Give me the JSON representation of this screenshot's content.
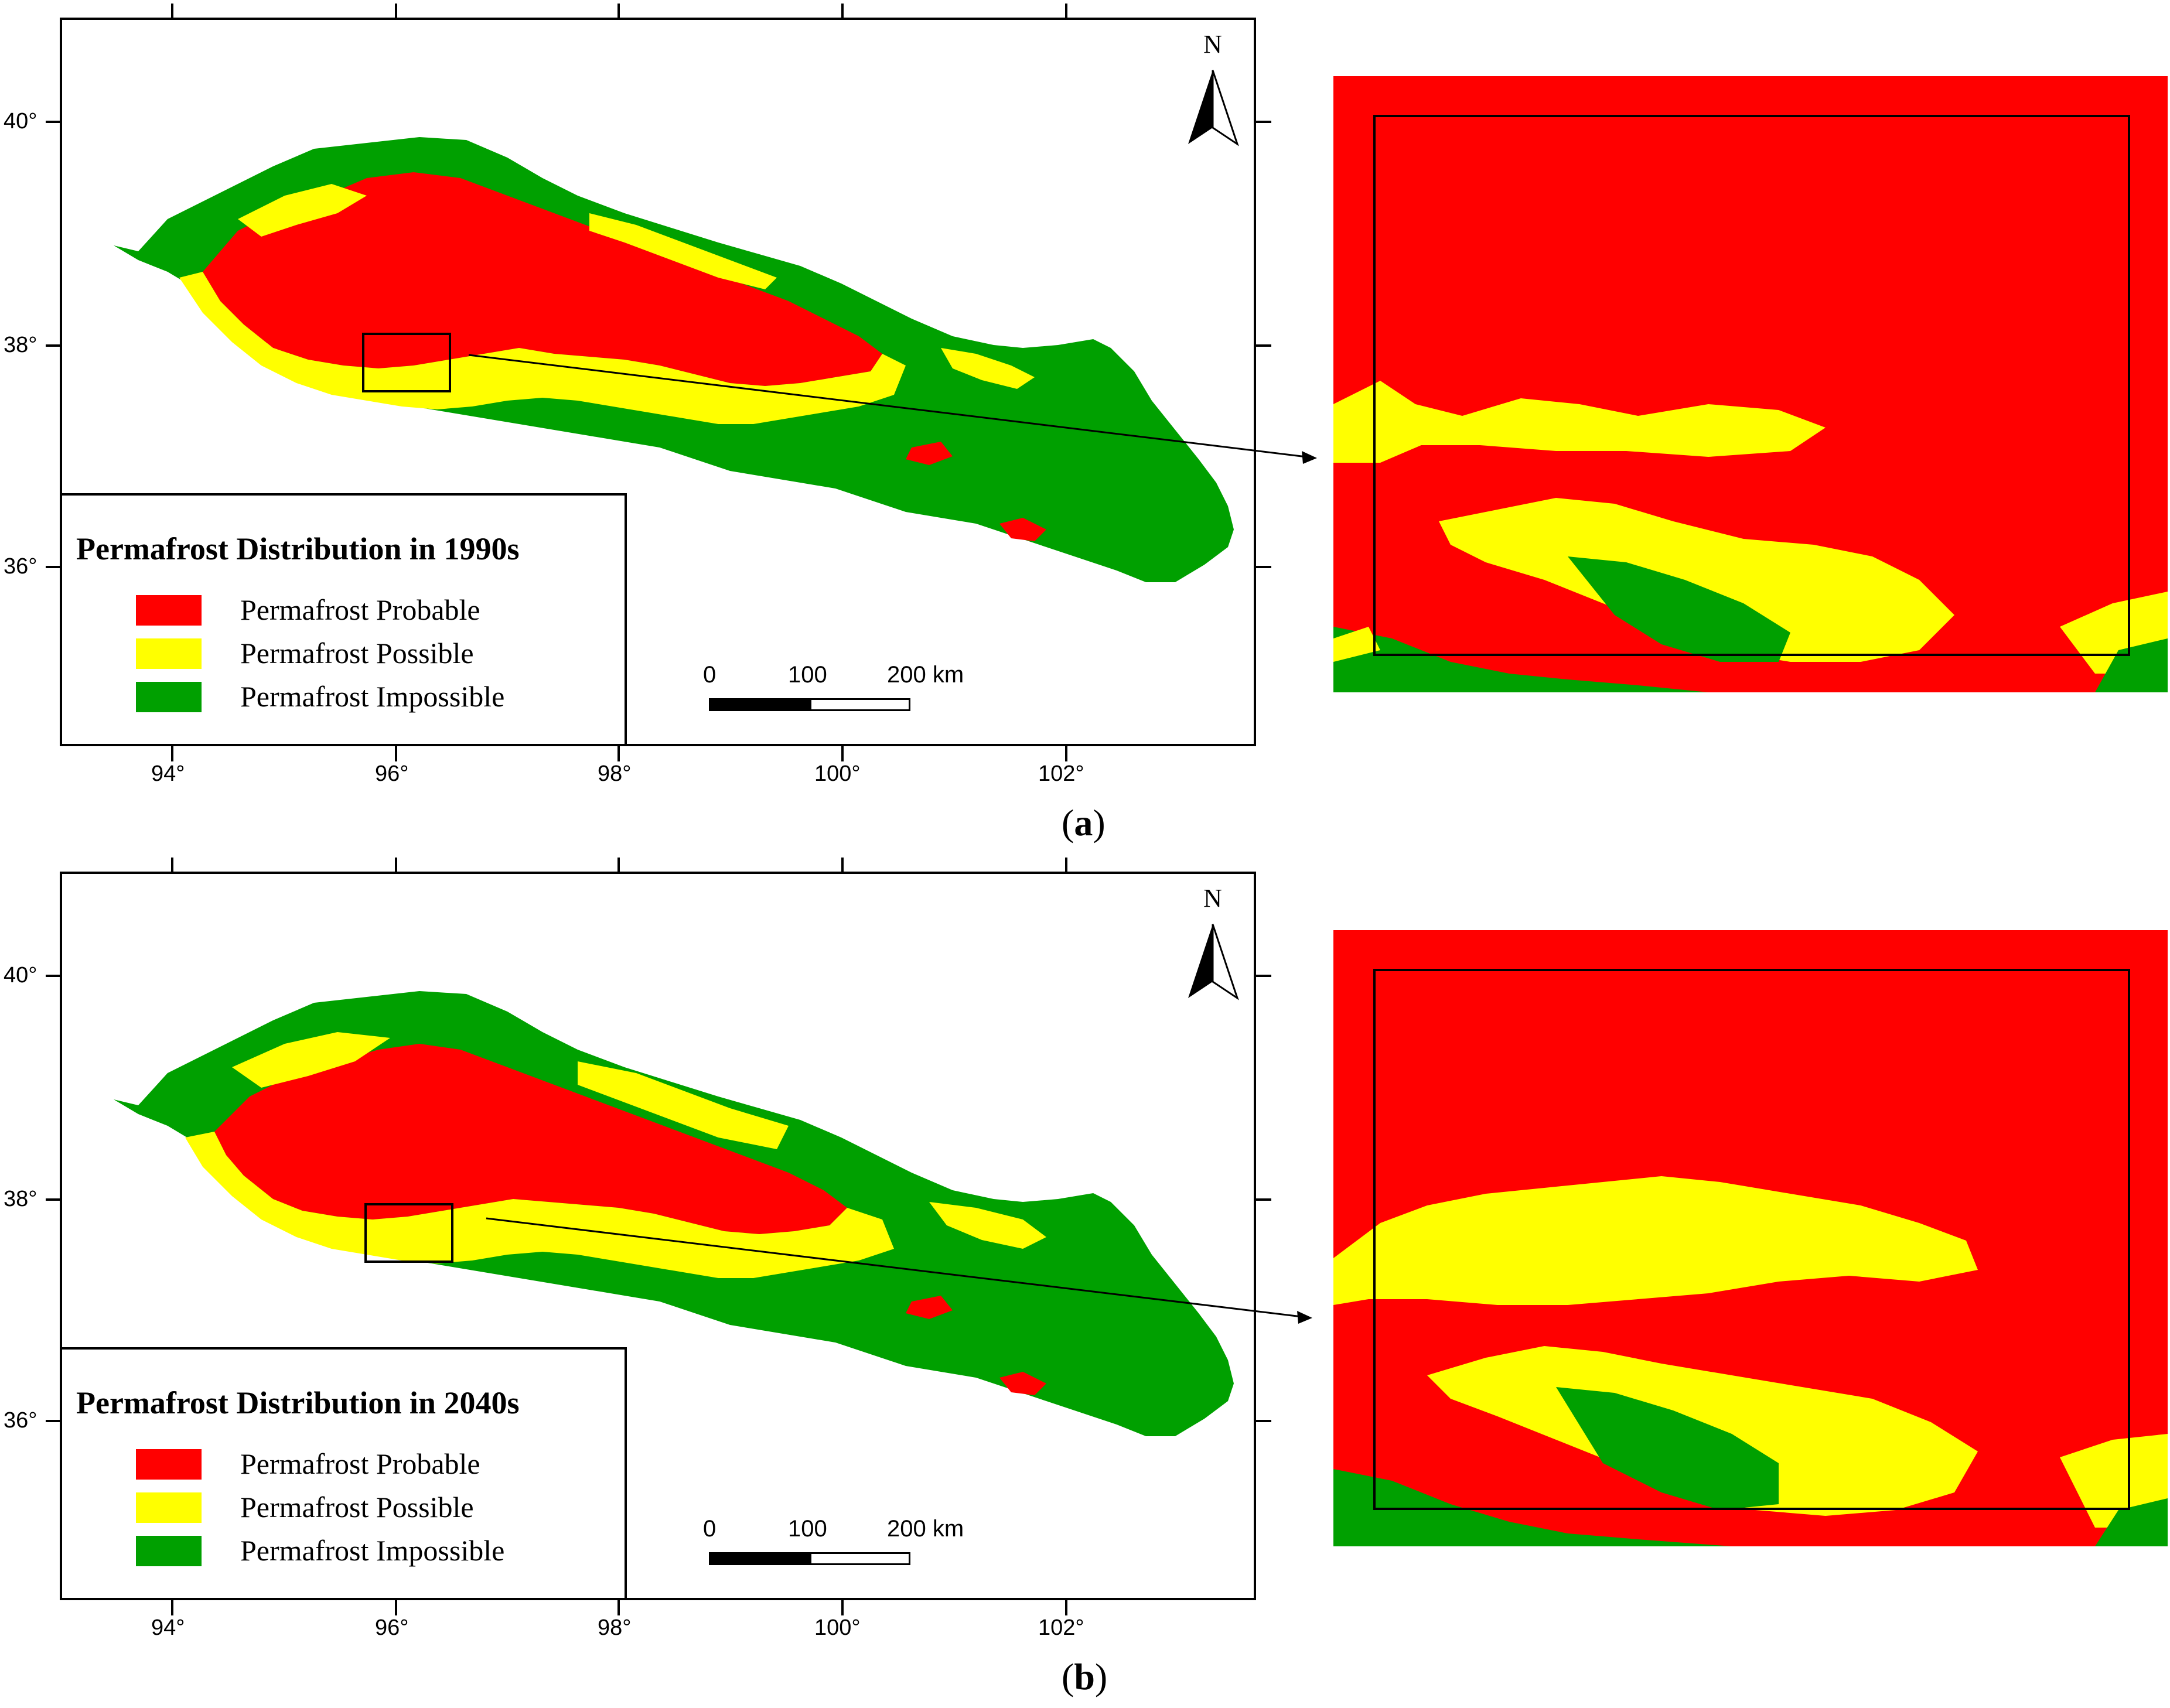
{
  "colors": {
    "probable": "#ff0000",
    "possible": "#ffff00",
    "impossible": "#00a000",
    "frame": "#000000"
  },
  "shared": {
    "north_label": "N",
    "x_ticks": [
      "94°",
      "96°",
      "98°",
      "100°",
      "102°"
    ],
    "y_ticks": [
      "40°",
      "38°",
      "36°"
    ],
    "scale": {
      "labels": [
        "0",
        "100",
        "200 km"
      ]
    },
    "legend_items": [
      "Permafrost Probable",
      "Permafrost Possible",
      "Permafrost Impossible"
    ]
  },
  "panels": [
    {
      "title": "Permafrost Distribution in 1990s",
      "label_letter": "a",
      "label_open": "(",
      "label_close": ")"
    },
    {
      "title": "Permafrost Distribution in 2040s",
      "label_letter": "b",
      "label_open": "(",
      "label_close": ")"
    }
  ]
}
